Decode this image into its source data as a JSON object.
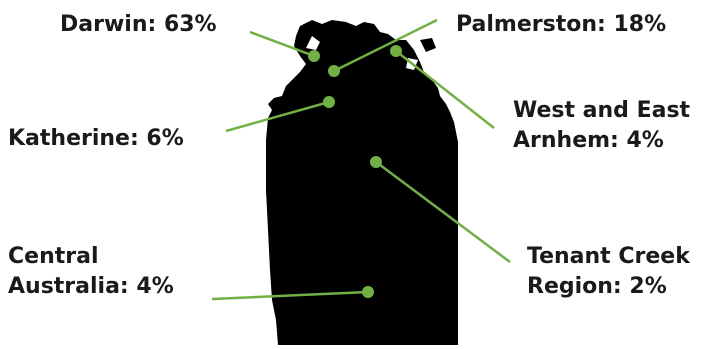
{
  "map": {
    "territory_color": "#000000",
    "marker_color": "#72b045",
    "leader_color": "#72b045"
  },
  "regions": [
    {
      "id": "darwin",
      "lines": [
        "Darwin: 63%"
      ],
      "percent": 63
    },
    {
      "id": "palmerston",
      "lines": [
        "Palmerston: 18%"
      ],
      "percent": 18
    },
    {
      "id": "west-and-east-arnhem",
      "lines": [
        "West and East",
        "Arnhem: 4%"
      ],
      "percent": 4
    },
    {
      "id": "katherine",
      "lines": [
        "Katherine: 6%"
      ],
      "percent": 6
    },
    {
      "id": "central-australia",
      "lines": [
        "Central",
        "Australia: 4%"
      ],
      "percent": 4
    },
    {
      "id": "tenant-creek-region",
      "lines": [
        "Tenant Creek",
        "Region: 2%"
      ],
      "percent": 2
    }
  ]
}
